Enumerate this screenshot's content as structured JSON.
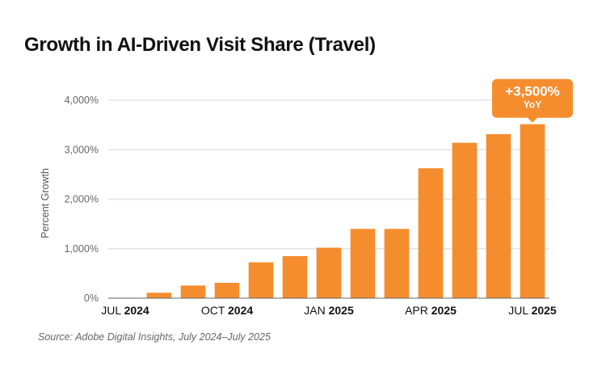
{
  "chart_data": {
    "type": "bar",
    "title": "Growth in AI-Driven Visit Share (Travel)",
    "ylabel": "Percent Growth",
    "xlabel": "",
    "ylim": [
      0,
      4000
    ],
    "yticks": [
      "0%",
      "1,000%",
      "2,000%",
      "3,000%",
      "4,000%"
    ],
    "ytick_values": [
      0,
      1000,
      2000,
      3000,
      4000
    ],
    "grid": true,
    "categories": [
      "Jul 2024",
      "Aug 2024",
      "Sep 2024",
      "Oct 2024",
      "Nov 2024",
      "Dec 2024",
      "Jan 2025",
      "Feb 2025",
      "Mar 2025",
      "Apr 2025",
      "May 2025",
      "Jun 2025",
      "Jul 2025"
    ],
    "values": [
      10,
      110,
      255,
      310,
      725,
      850,
      1020,
      1400,
      1400,
      2625,
      3140,
      3315,
      3515
    ],
    "xtick_labels": [
      {
        "index": 0,
        "month": "JUL",
        "year": "2024"
      },
      {
        "index": 3,
        "month": "OCT",
        "year": "2024"
      },
      {
        "index": 6,
        "month": "JAN",
        "year": "2025"
      },
      {
        "index": 9,
        "month": "APR",
        "year": "2025"
      },
      {
        "index": 12,
        "month": "JUL",
        "year": "2025"
      }
    ],
    "annotation": {
      "index": 12,
      "value": "+3,500%",
      "sub": "YoY"
    },
    "bar_color": "#F58D2E",
    "source": "Source: Adobe Digital Insights, July 2024–July 2025"
  }
}
